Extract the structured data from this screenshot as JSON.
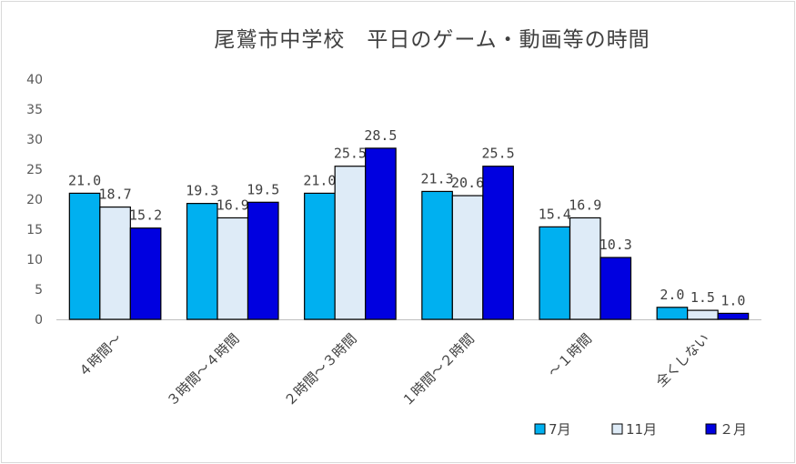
{
  "chart_data": {
    "type": "bar",
    "title": "尾鷲市中学校　平日のゲーム・動画等の時間",
    "categories": [
      "４時間～",
      "３時間～４時間",
      "２時間～３時間",
      "１時間～２時間",
      "～１時間",
      "全くしない"
    ],
    "series": [
      {
        "name": "7月",
        "values": [
          21.0,
          19.3,
          21.0,
          21.3,
          15.4,
          2.0
        ],
        "color": "#00b0f0"
      },
      {
        "name": "11月",
        "values": [
          18.7,
          16.9,
          25.5,
          20.6,
          16.9,
          1.5
        ],
        "color": "#deebf7"
      },
      {
        "name": "２月",
        "values": [
          15.2,
          19.5,
          28.5,
          25.5,
          10.3,
          1.0
        ],
        "color": "#0000e0"
      }
    ],
    "ylim": [
      0,
      40
    ],
    "yticks": [
      0,
      5,
      10,
      15,
      20,
      25,
      30,
      35,
      40
    ],
    "grid": false,
    "legend": "bottom-right"
  }
}
